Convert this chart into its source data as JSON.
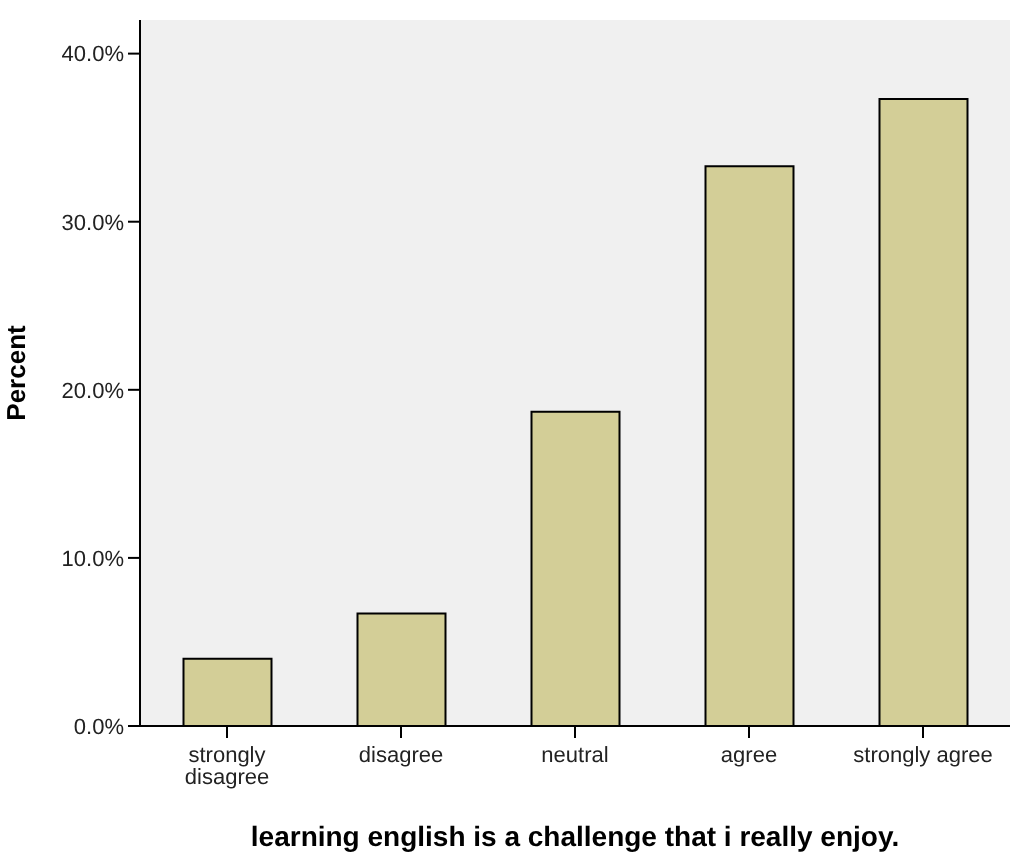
{
  "chart_data": {
    "type": "bar",
    "xlabel": "learning english is a challenge that i really enjoy.",
    "ylabel": "Percent",
    "categories": [
      "strongly disagree",
      "disagree",
      "neutral",
      "agree",
      "strongly agree"
    ],
    "values": [
      4.0,
      6.7,
      18.7,
      33.3,
      37.3
    ],
    "color": "#d3ce97",
    "ylim": [
      0,
      42
    ],
    "yticks": [
      {
        "value": 0,
        "label": "0.0%"
      },
      {
        "value": 10,
        "label": "10.0%"
      },
      {
        "value": 20,
        "label": "20.0%"
      },
      {
        "value": 30,
        "label": "30.0%"
      },
      {
        "value": 40,
        "label": "40.0%"
      }
    ],
    "grid": false
  }
}
